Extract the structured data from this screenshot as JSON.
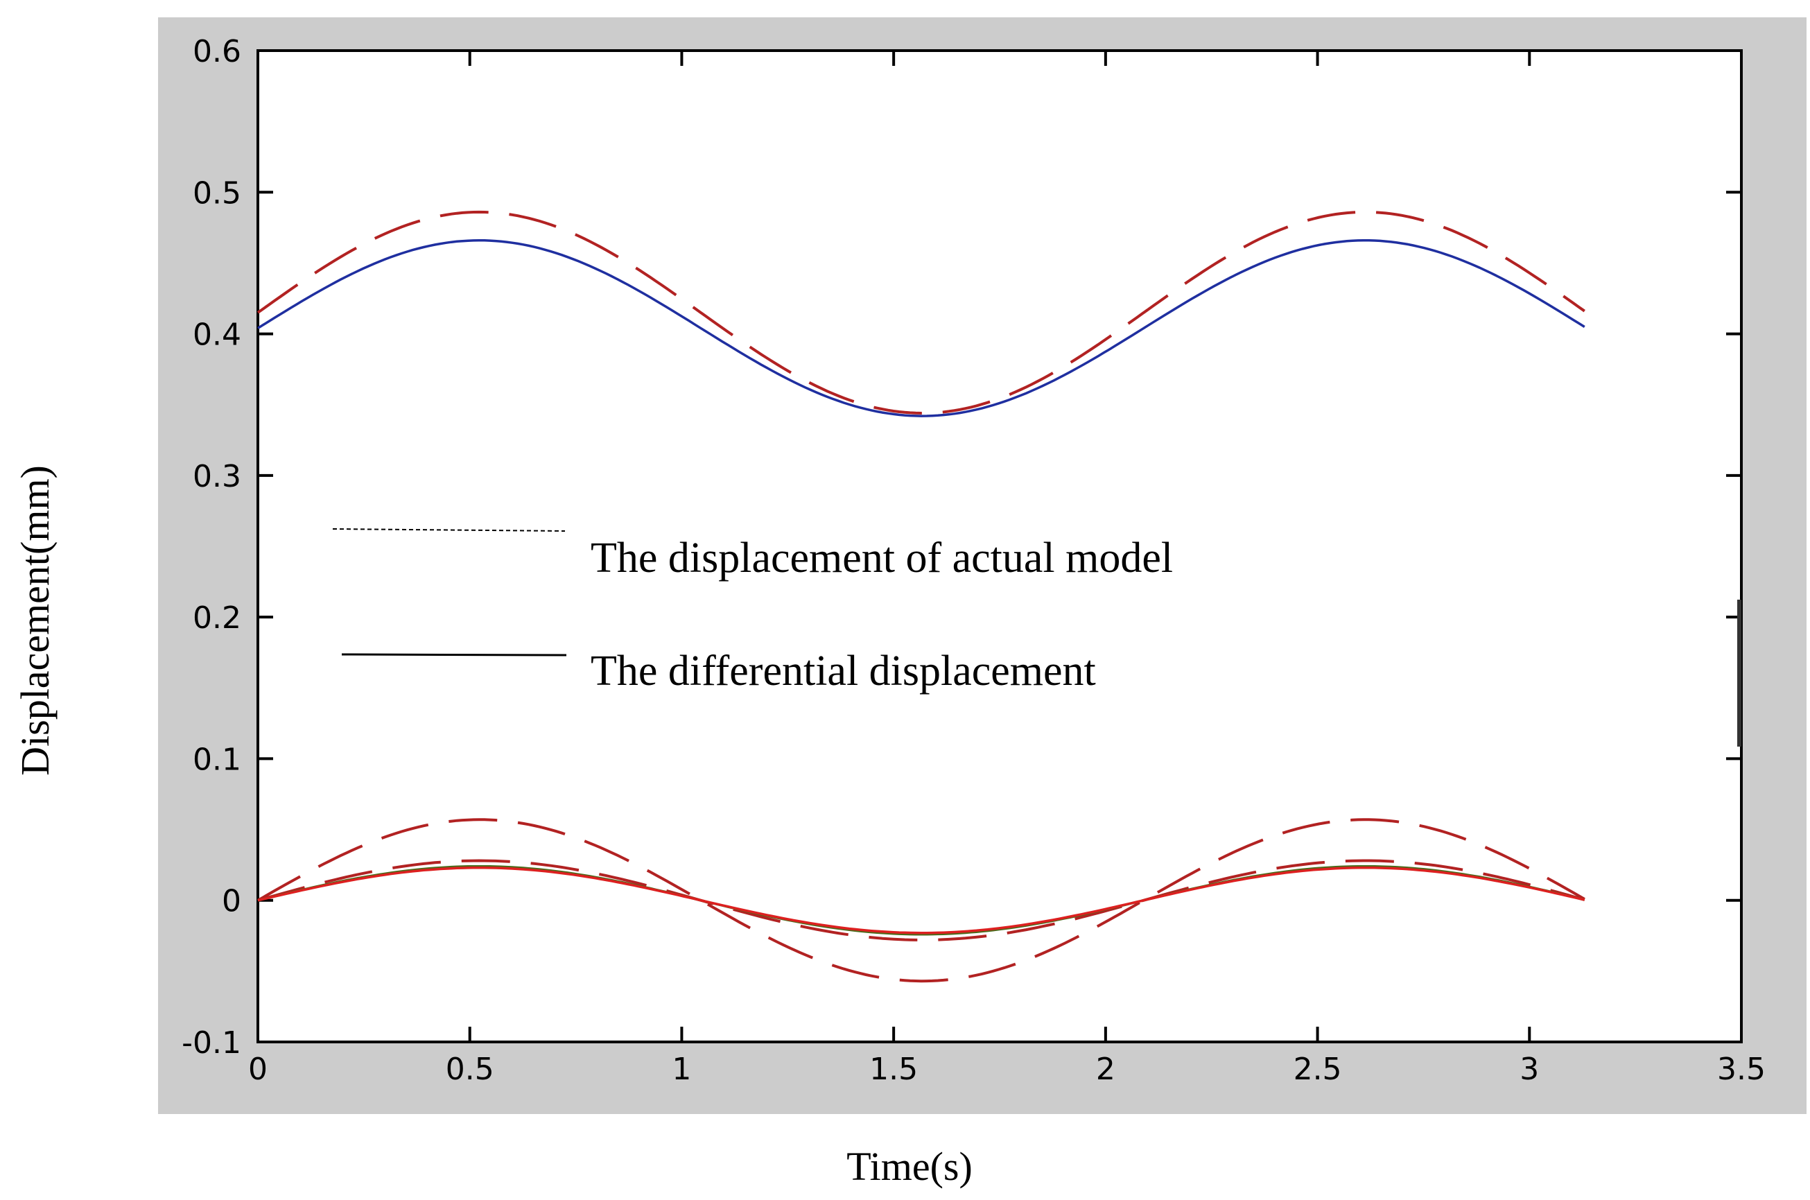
{
  "chart_data": {
    "type": "line",
    "xlabel": "Time(s)",
    "ylabel": "Displacement(mm)",
    "xlim": [
      0,
      3.5
    ],
    "ylim": [
      -0.1,
      0.6
    ],
    "xticks": [
      "0",
      "0.5",
      "1",
      "1.5",
      "2",
      "2.5",
      "3",
      "3.5"
    ],
    "yticks": [
      "-0.1",
      "0",
      "0.1",
      "0.2",
      "0.3",
      "0.4",
      "0.5",
      "0.6"
    ],
    "legend": [
      {
        "label": "The displacement of actual model",
        "style": "dashed"
      },
      {
        "label": "The differential displacement",
        "style": "solid"
      }
    ],
    "period": 2.09,
    "x_end": 3.13,
    "series": [
      {
        "name": "actual model (upper)",
        "style": "dashed",
        "color": "#b22222",
        "center": 0.415,
        "amplitude": 0.071
      },
      {
        "name": "differential (upper)",
        "style": "solid",
        "color": "#1f2fa0",
        "center": 0.404,
        "amplitude": 0.062
      },
      {
        "name": "actual model (outer)",
        "style": "dashed",
        "color": "#b22222",
        "center": 0.0,
        "amplitude": 0.057
      },
      {
        "name": "actual model (middle)",
        "style": "dashed",
        "color": "#b22222",
        "center": 0.0,
        "amplitude": 0.028
      },
      {
        "name": "differential (lower)",
        "style": "solid",
        "color": "#4a6a1a",
        "center": 0.0,
        "amplitude": 0.024
      },
      {
        "name": "actual model (inner)",
        "style": "solid",
        "color": "#dd2020",
        "center": 0.0,
        "amplitude": 0.023
      }
    ]
  }
}
